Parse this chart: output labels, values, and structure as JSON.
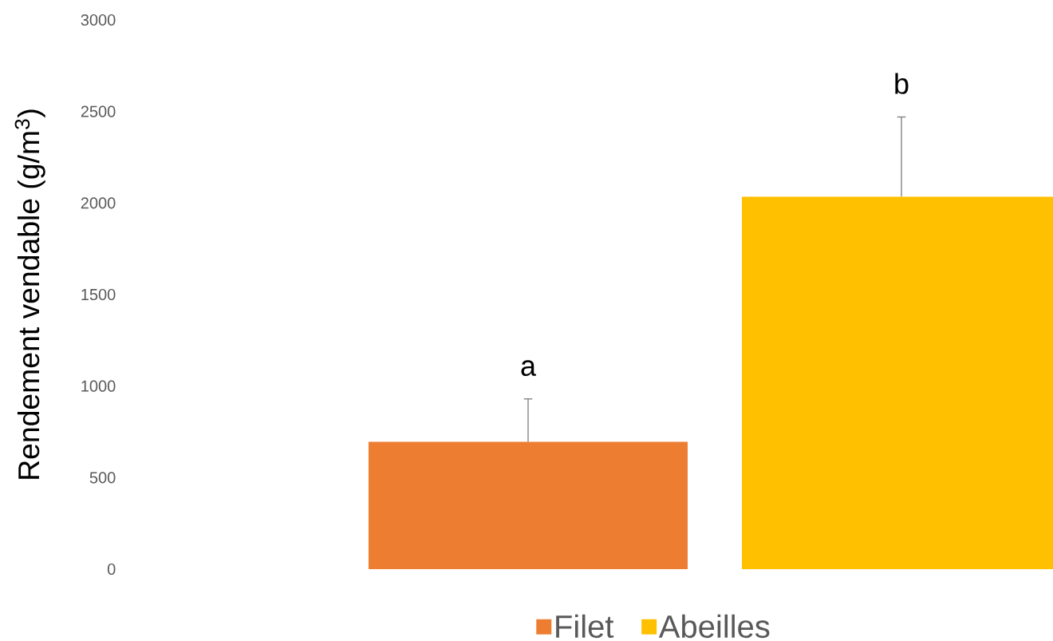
{
  "chart_data": {
    "type": "bar",
    "ylabel": "Rendement vendable (g/m$^{3}$)",
    "categories": [
      null
    ],
    "series": [
      {
        "name": "Filet",
        "color": "#ed7d31",
        "values": [
          695
        ],
        "errors": [
          [
            695,
            930
          ]
        ]
      },
      {
        "name": "Abeilles",
        "color": "#ffc000",
        "values": [
          2035
        ],
        "errors": [
          [
            2035,
            2470
          ]
        ]
      }
    ],
    "ylim": [
      0,
      3000
    ],
    "yticks": [
      0,
      500,
      1000,
      1500,
      2000,
      2500,
      3000
    ],
    "legend": "bottom",
    "annotations": [
      "a",
      "b"
    ]
  }
}
